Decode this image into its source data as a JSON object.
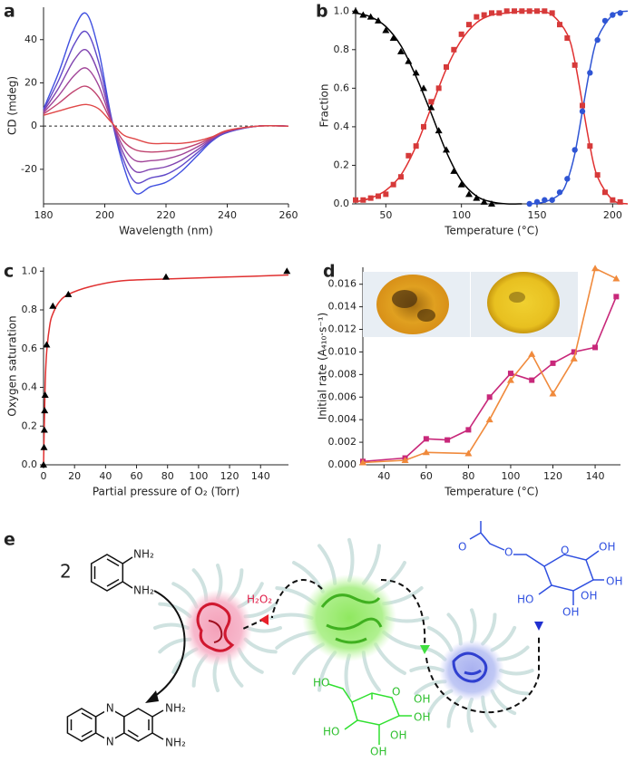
{
  "chart_data": [
    {
      "type": "line",
      "panel_label": "a",
      "x_label": "Wavelength (nm)",
      "y_label": "CD (mdeg)",
      "smooth": true,
      "x": [
        180,
        185,
        190,
        194,
        198,
        202,
        206,
        210,
        215,
        220,
        225,
        230,
        235,
        240,
        250,
        260
      ],
      "series": [
        {
          "color": "#4050e0",
          "values": [
            8,
            25,
            45,
            52,
            35,
            5,
            -18,
            -31,
            -28,
            -26,
            -21,
            -14,
            -7,
            -3,
            0,
            0
          ]
        },
        {
          "color": "#6048c8",
          "values": [
            7.4,
            21.4,
            37.8,
            43.6,
            29.6,
            4.4,
            -15.2,
            -26,
            -24,
            -22.4,
            -18.4,
            -12.6,
            -6.6,
            -2.8,
            0,
            0
          ]
        },
        {
          "color": "#8044b0",
          "values": [
            6.8,
            17.8,
            30.6,
            35.2,
            24.2,
            3.8,
            -12.4,
            -21,
            -20,
            -18.8,
            -15.8,
            -11.2,
            -6.2,
            -2.6,
            0,
            0
          ]
        },
        {
          "color": "#a04498",
          "values": [
            6.2,
            14.2,
            23.4,
            26.8,
            18.8,
            3.2,
            -9.6,
            -16,
            -16,
            -15.2,
            -13.2,
            -9.8,
            -5.8,
            -2.4,
            0,
            0
          ]
        },
        {
          "color": "#c04470",
          "values": [
            5.6,
            10.6,
            16.2,
            18.4,
            13.4,
            2.6,
            -6.8,
            -11,
            -12,
            -11.6,
            -10.6,
            -8.4,
            -5.4,
            -2.2,
            0,
            0
          ]
        },
        {
          "color": "#e04848",
          "values": [
            5,
            7,
            9,
            10,
            8,
            2,
            -4,
            -6,
            -8,
            -8,
            -8,
            -7,
            -5,
            -2,
            0,
            0
          ]
        }
      ],
      "reference_line": 0,
      "xlim": [
        180,
        260
      ],
      "xticks": [
        180,
        200,
        220,
        240,
        260
      ],
      "ylim": [
        -36,
        55
      ],
      "yticks": [
        -20,
        0,
        20,
        40
      ]
    },
    {
      "type": "scatter",
      "panel_label": "b",
      "x_label": "Temperature (°C)",
      "y_label": "Fraction",
      "series": [
        {
          "color": "#000000",
          "marker": "triangle",
          "x": [
            30,
            35,
            40,
            45,
            50,
            55,
            60,
            65,
            70,
            75,
            80,
            85,
            90,
            95,
            100,
            105,
            110,
            115,
            120
          ],
          "values": [
            1.0,
            0.98,
            0.97,
            0.95,
            0.9,
            0.86,
            0.79,
            0.74,
            0.68,
            0.6,
            0.5,
            0.38,
            0.28,
            0.17,
            0.1,
            0.05,
            0.03,
            0.01,
            0.0
          ]
        },
        {
          "color": "#d63a3a",
          "marker": "square",
          "x": [
            30,
            35,
            40,
            45,
            50,
            55,
            60,
            65,
            70,
            75,
            80,
            85,
            90,
            95,
            100,
            105,
            110,
            115,
            120,
            125,
            130,
            135,
            140,
            145,
            150,
            155,
            160,
            165,
            170,
            175,
            180,
            185,
            190,
            195,
            200,
            205
          ],
          "values": [
            0.02,
            0.02,
            0.03,
            0.04,
            0.05,
            0.1,
            0.14,
            0.25,
            0.3,
            0.4,
            0.53,
            0.6,
            0.71,
            0.8,
            0.88,
            0.93,
            0.97,
            0.98,
            0.99,
            0.99,
            1.0,
            1.0,
            1.0,
            1.0,
            1.0,
            1.0,
            0.99,
            0.93,
            0.86,
            0.72,
            0.51,
            0.3,
            0.15,
            0.06,
            0.02,
            0.01
          ]
        },
        {
          "color": "#2f55d4",
          "marker": "circle",
          "x": [
            145,
            150,
            155,
            160,
            165,
            170,
            175,
            180,
            185,
            190,
            195,
            200,
            205
          ],
          "values": [
            0.0,
            0.01,
            0.02,
            0.02,
            0.06,
            0.13,
            0.28,
            0.48,
            0.68,
            0.85,
            0.95,
            0.98,
            0.99
          ]
        }
      ],
      "fits": [
        {
          "color": "#000000",
          "x": [
            30,
            40,
            50,
            60,
            70,
            80,
            90,
            100,
            110,
            120,
            130,
            140
          ],
          "values": [
            0.99,
            0.97,
            0.92,
            0.82,
            0.66,
            0.47,
            0.27,
            0.12,
            0.04,
            0.01,
            0,
            0
          ]
        },
        {
          "color": "#e03030",
          "x": [
            30,
            40,
            50,
            60,
            70,
            80,
            90,
            100,
            110,
            120,
            130,
            140,
            150,
            160,
            170,
            175,
            180,
            185,
            190,
            200,
            210
          ],
          "values": [
            0.01,
            0.03,
            0.07,
            0.15,
            0.3,
            0.5,
            0.7,
            0.85,
            0.94,
            0.98,
            0.99,
            1.0,
            1.0,
            0.98,
            0.88,
            0.74,
            0.52,
            0.3,
            0.14,
            0.02,
            0.0
          ]
        },
        {
          "color": "#2f55d4",
          "x": [
            145,
            155,
            165,
            170,
            175,
            180,
            185,
            190,
            200,
            210
          ],
          "values": [
            0,
            0.01,
            0.05,
            0.12,
            0.26,
            0.48,
            0.7,
            0.86,
            0.98,
            1.0
          ]
        }
      ],
      "xlim": [
        30,
        210
      ],
      "xticks": [
        50,
        100,
        150,
        200
      ],
      "ylim": [
        0,
        1.02
      ],
      "yticks": [
        {
          "value": 0,
          "label": "0.0"
        },
        0.2,
        0.4,
        0.6,
        0.8,
        {
          "value": 1,
          "label": "1.0"
        }
      ]
    },
    {
      "type": "scatter",
      "panel_label": "c",
      "x_label": "Partial pressure of O₂ (Torr)",
      "y_label": "Oxygen saturation",
      "series": [
        {
          "color": "#000000",
          "marker": "triangle",
          "x": [
            0,
            0.3,
            0.5,
            0.7,
            1,
            2,
            6,
            16,
            79,
            157
          ],
          "values": [
            0.0,
            0.09,
            0.18,
            0.28,
            0.36,
            0.62,
            0.82,
            0.88,
            0.97,
            1.0
          ]
        }
      ],
      "fits": [
        {
          "color": "#e03030",
          "x": [
            0,
            1,
            2,
            4,
            6,
            10,
            16,
            30,
            50,
            80,
            120,
            158
          ],
          "values": [
            0,
            0.4,
            0.58,
            0.72,
            0.78,
            0.84,
            0.88,
            0.92,
            0.95,
            0.96,
            0.97,
            0.98
          ]
        }
      ],
      "xlim": [
        0,
        158
      ],
      "xticks": [
        0,
        20,
        40,
        60,
        80,
        100,
        120,
        140
      ],
      "ylim": [
        0,
        1.02
      ],
      "yticks": [
        {
          "value": 0,
          "label": "0.0"
        },
        0.2,
        0.4,
        0.6,
        0.8,
        {
          "value": 1,
          "label": "1.0"
        }
      ]
    },
    {
      "type": "line",
      "panel_label": "d",
      "x_label": "Temperature (°C)",
      "y_label": "Initial rate (A₄₁₀·s⁻¹)",
      "series": [
        {
          "color": "#c8287a",
          "marker": "square",
          "x": [
            30,
            50,
            60,
            70,
            80,
            90,
            100,
            110,
            120,
            130,
            140,
            150
          ],
          "values": [
            0.0003,
            0.0006,
            0.0023,
            0.0022,
            0.0031,
            0.006,
            0.0081,
            0.0075,
            0.009,
            0.01,
            0.0104,
            0.0149
          ]
        },
        {
          "color": "#f08a3c",
          "marker": "triangle",
          "x": [
            30,
            50,
            60,
            80,
            90,
            100,
            110,
            120,
            130,
            140,
            150
          ],
          "values": [
            0.0002,
            0.0004,
            0.0011,
            0.001,
            0.004,
            0.0075,
            0.0098,
            0.0063,
            0.0094,
            0.0174,
            0.0165
          ]
        }
      ],
      "xlim": [
        30,
        152
      ],
      "xticks": [
        40,
        60,
        80,
        100,
        120,
        140
      ],
      "ylim": [
        0,
        0.0175
      ],
      "yticks": [
        {
          "value": 0,
          "label": "0.000"
        },
        {
          "value": 0.002,
          "label": "0.002"
        },
        {
          "value": 0.004,
          "label": "0.004"
        },
        {
          "value": 0.006,
          "label": "0.006"
        },
        {
          "value": 0.008,
          "label": "0.008"
        },
        {
          "value": 0.01,
          "label": "0.010"
        },
        {
          "value": 0.012,
          "label": "0.012"
        },
        {
          "value": 0.014,
          "label": "0.014"
        },
        {
          "value": 0.016,
          "label": "0.016"
        }
      ]
    }
  ],
  "panel_e": {
    "label": "e",
    "reactant": {
      "coefficient": "2",
      "groups": [
        "NH₂",
        "NH₂"
      ]
    },
    "product": {
      "atoms": [
        "N",
        "N"
      ],
      "groups": [
        "NH₂",
        "NH₂"
      ]
    },
    "oxidant": "H₂O₂",
    "glucose": {
      "atoms": [
        "O"
      ],
      "groups": [
        "HO",
        "OH",
        "OH",
        "HO",
        "OH",
        "OH"
      ]
    },
    "acetyl_glucose": {
      "atoms": [
        "O",
        "O",
        "O"
      ],
      "groups": [
        "OH",
        "OH",
        "HO",
        "OH",
        "OH"
      ]
    }
  }
}
